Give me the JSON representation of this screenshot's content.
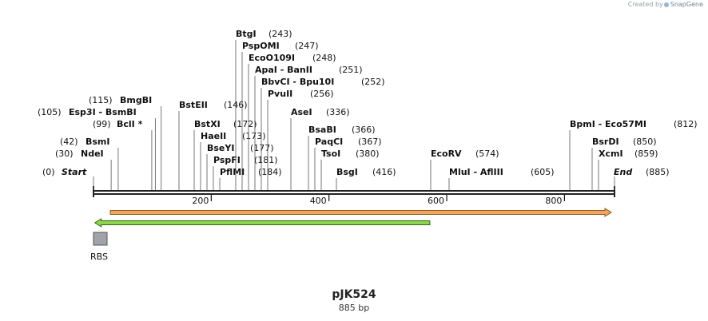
{
  "credit": {
    "prefix": "Created by",
    "brand": "SnapGene"
  },
  "plasmid": {
    "name": "pJK524",
    "length_label": "885 bp",
    "length_bp": 885
  },
  "ruler": {
    "ticks": [
      200,
      400,
      600,
      800
    ]
  },
  "colors": {
    "backbone": "#222222",
    "orf_orange_fill": "#f4a460",
    "orf_orange_stroke": "#8a5a18",
    "orf_green_fill": "#8fd44e",
    "orf_green_stroke": "#2e6b12",
    "rbs_fill": "#a0a4aa"
  },
  "features": [
    {
      "name": "",
      "type": "orf",
      "start": 30,
      "end": 885,
      "direction": "forward",
      "color": "orange"
    },
    {
      "name": "",
      "type": "orf",
      "start": 1,
      "end": 574,
      "direction": "reverse",
      "color": "green"
    },
    {
      "name": "RBS",
      "type": "rbs",
      "start": 1,
      "end": 14
    }
  ],
  "sites": [
    {
      "names": [
        "Start"
      ],
      "pos_label": "(0)",
      "pos": 0,
      "italic": true,
      "side": "right"
    },
    {
      "names": [
        "NdeI"
      ],
      "pos_label": "(30)",
      "pos": 30,
      "side": "right"
    },
    {
      "names": [
        "BsmI"
      ],
      "pos_label": "(42)",
      "pos": 42,
      "side": "right"
    },
    {
      "names": [
        "BclI *"
      ],
      "pos_label": "(99)",
      "pos": 99,
      "side": "right"
    },
    {
      "names": [
        "Esp3I",
        "BsmBI"
      ],
      "pos_label": "(105)",
      "pos": 105,
      "side": "right"
    },
    {
      "names": [
        "BmgBI"
      ],
      "pos_label": "(115)",
      "pos": 115,
      "side": "right"
    },
    {
      "names": [
        "BstEII"
      ],
      "pos_label": "(146)",
      "pos": 146,
      "side": "left"
    },
    {
      "names": [
        "BstXI"
      ],
      "pos_label": "(172)",
      "pos": 172,
      "side": "left"
    },
    {
      "names": [
        "HaeII"
      ],
      "pos_label": "(173)",
      "pos": 173,
      "side": "left"
    },
    {
      "names": [
        "BseYI"
      ],
      "pos_label": "(177)",
      "pos": 177,
      "side": "left"
    },
    {
      "names": [
        "PspFI"
      ],
      "pos_label": "(181)",
      "pos": 181,
      "side": "left"
    },
    {
      "names": [
        "PflMI"
      ],
      "pos_label": "(184)",
      "pos": 184,
      "side": "left"
    },
    {
      "names": [
        "BtgI"
      ],
      "pos_label": "(243)",
      "pos": 243,
      "side": "left"
    },
    {
      "names": [
        "PspOMI"
      ],
      "pos_label": "(247)",
      "pos": 247,
      "side": "left"
    },
    {
      "names": [
        "EcoO109I"
      ],
      "pos_label": "(248)",
      "pos": 248,
      "side": "left"
    },
    {
      "names": [
        "ApaI",
        "BanII"
      ],
      "pos_label": "(251)",
      "pos": 251,
      "side": "left"
    },
    {
      "names": [
        "BbvCI",
        "Bpu10I"
      ],
      "pos_label": "(252)",
      "pos": 252,
      "side": "left"
    },
    {
      "names": [
        "PvuII"
      ],
      "pos_label": "(256)",
      "pos": 256,
      "side": "left"
    },
    {
      "names": [
        "AseI"
      ],
      "pos_label": "(336)",
      "pos": 336,
      "side": "left"
    },
    {
      "names": [
        "BsaBI"
      ],
      "pos_label": "(366)",
      "pos": 366,
      "side": "left"
    },
    {
      "names": [
        "PaqCI"
      ],
      "pos_label": "(367)",
      "pos": 367,
      "side": "left"
    },
    {
      "names": [
        "TsoI"
      ],
      "pos_label": "(380)",
      "pos": 380,
      "side": "left"
    },
    {
      "names": [
        "BsgI"
      ],
      "pos_label": "(416)",
      "pos": 416,
      "side": "left"
    },
    {
      "names": [
        "EcoRV"
      ],
      "pos_label": "(574)",
      "pos": 574,
      "side": "left"
    },
    {
      "names": [
        "MluI",
        "AflIII"
      ],
      "pos_label": "(605)",
      "pos": 605,
      "side": "left"
    },
    {
      "names": [
        "BpmI",
        "Eco57MI"
      ],
      "pos_label": "(812)",
      "pos": 812,
      "side": "left"
    },
    {
      "names": [
        "BsrDI"
      ],
      "pos_label": "(850)",
      "pos": 850,
      "side": "left"
    },
    {
      "names": [
        "XcmI"
      ],
      "pos_label": "(859)",
      "pos": 859,
      "side": "left"
    },
    {
      "names": [
        "End"
      ],
      "pos_label": "(885)",
      "pos": 885,
      "italic": true,
      "side": "left"
    }
  ]
}
